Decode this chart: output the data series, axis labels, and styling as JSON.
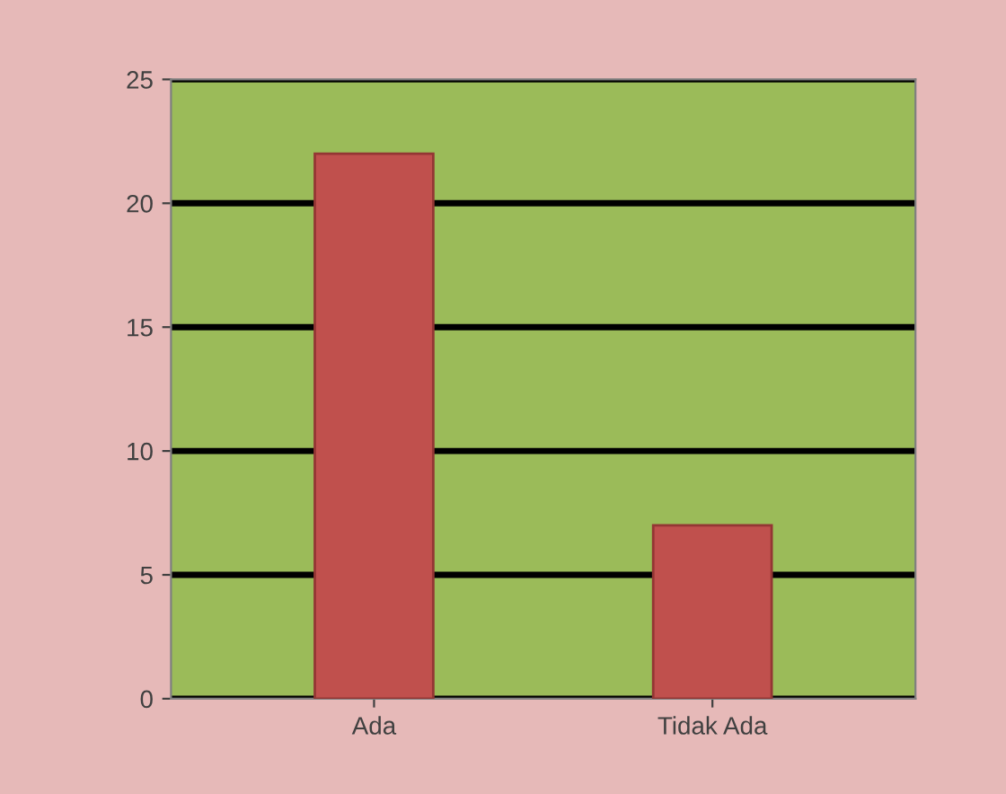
{
  "chart_data": {
    "type": "bar",
    "categories": [
      "Ada",
      "Tidak Ada"
    ],
    "values": [
      22,
      7
    ],
    "color": "#c0504d",
    "ylim": [
      0,
      25
    ],
    "yticks": [
      0,
      5,
      10,
      15,
      20,
      25
    ],
    "grid": "y"
  }
}
